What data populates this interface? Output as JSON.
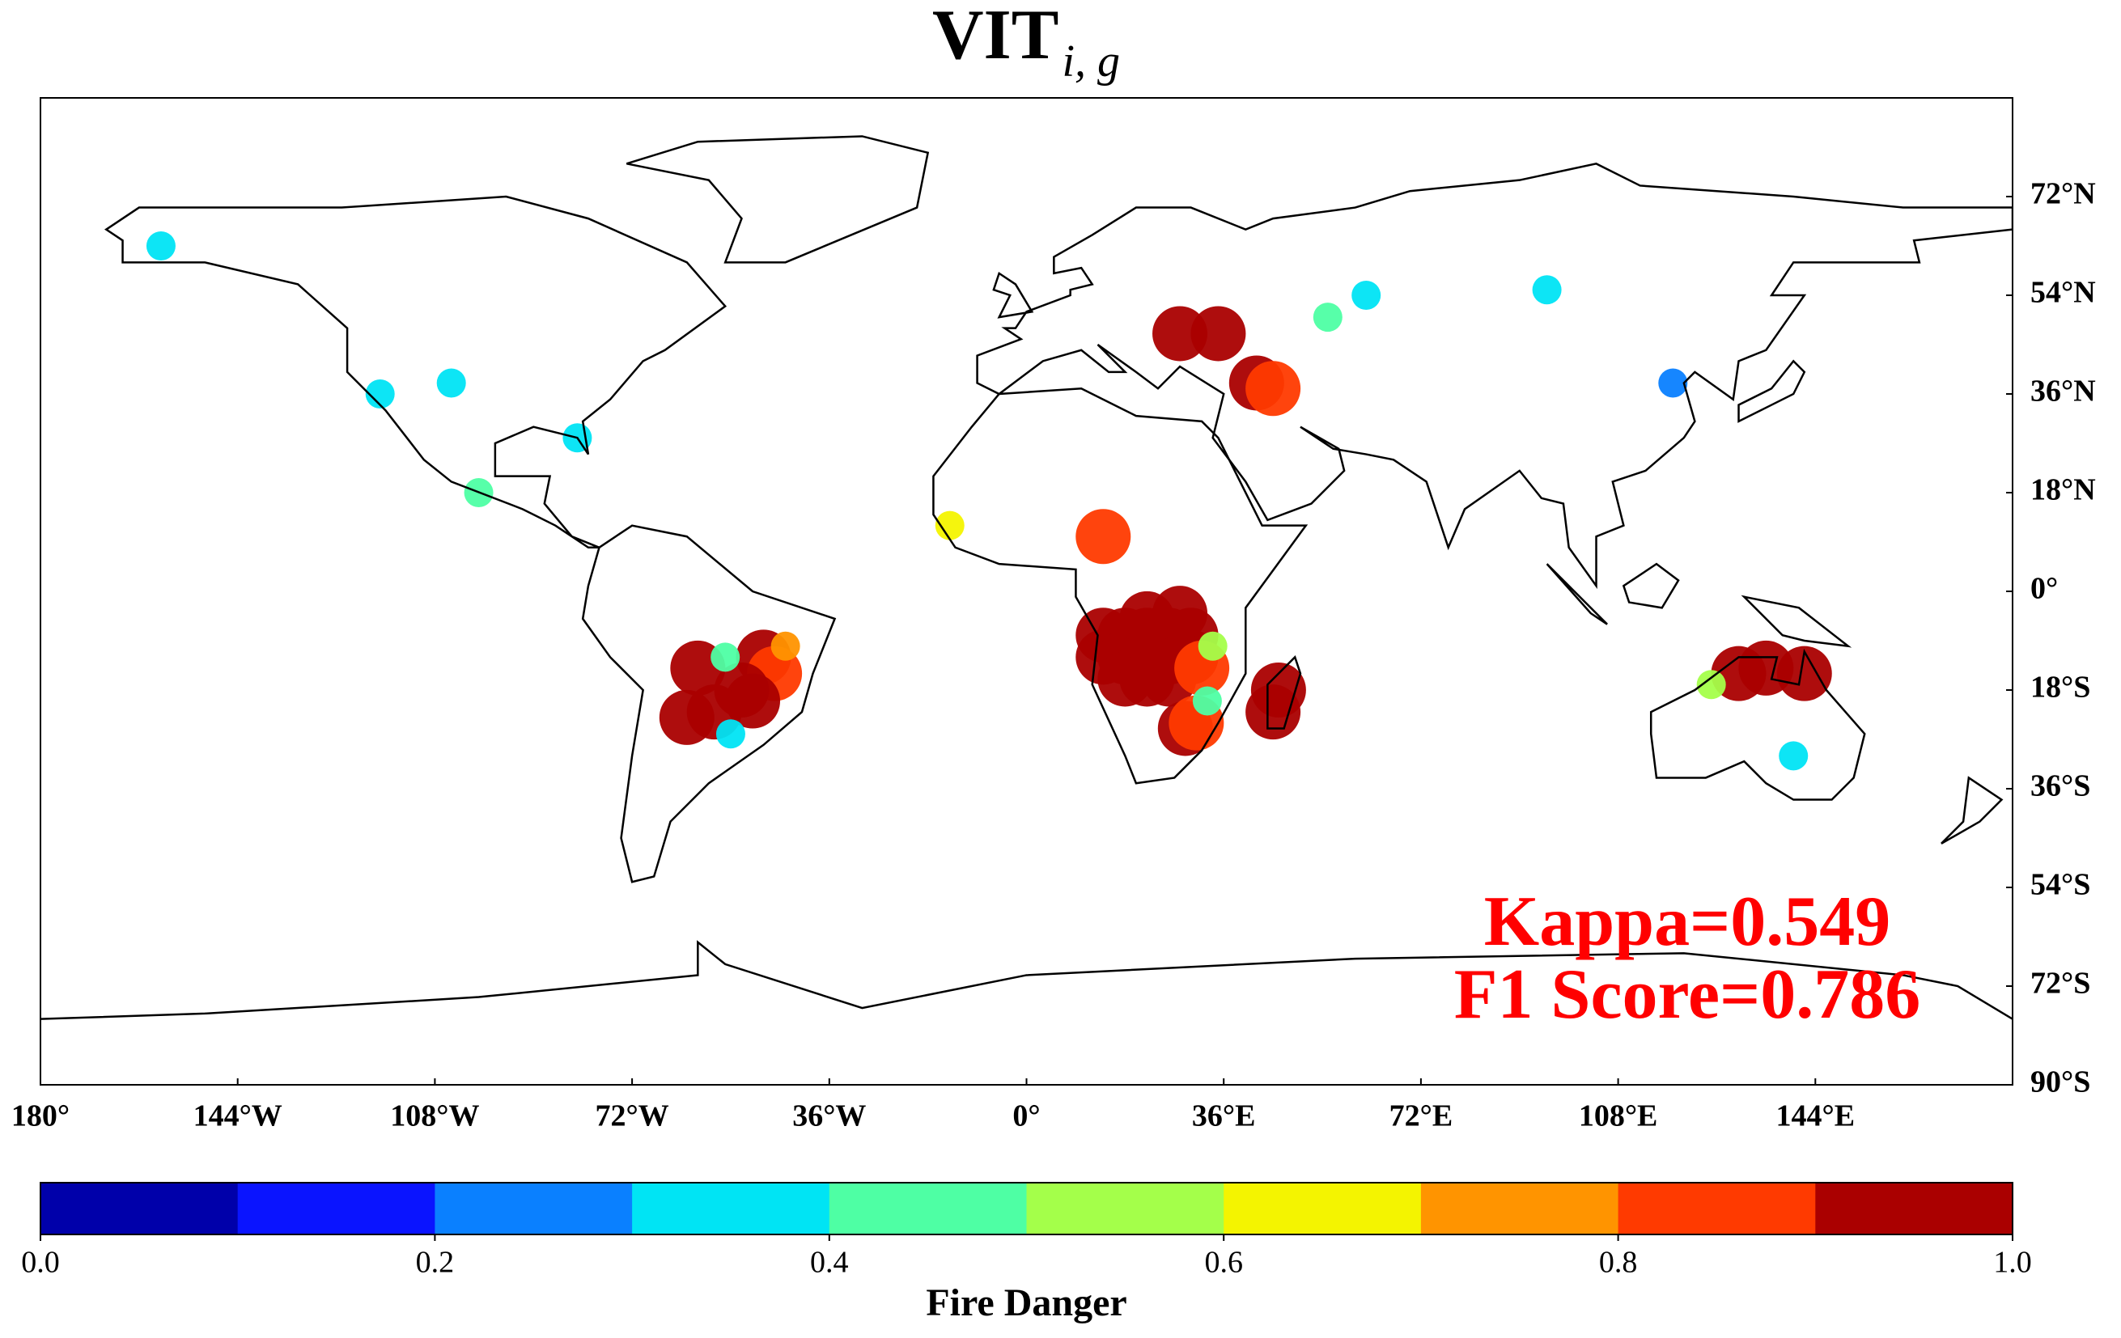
{
  "chart_data": {
    "type": "map",
    "title": "VIT",
    "title_subscript": "i, g",
    "xlim": [
      -180,
      180
    ],
    "ylim": [
      -90,
      90
    ],
    "xticks": [
      {
        "value": -180,
        "label": "180°"
      },
      {
        "value": -144,
        "label": "144°W"
      },
      {
        "value": -108,
        "label": "108°W"
      },
      {
        "value": -72,
        "label": "72°W"
      },
      {
        "value": -36,
        "label": "36°W"
      },
      {
        "value": 0,
        "label": "0°"
      },
      {
        "value": 36,
        "label": "36°E"
      },
      {
        "value": 72,
        "label": "72°E"
      },
      {
        "value": 108,
        "label": "108°E"
      },
      {
        "value": 144,
        "label": "144°E"
      }
    ],
    "yticks": [
      {
        "value": 72,
        "label": "72°N"
      },
      {
        "value": 54,
        "label": "54°N"
      },
      {
        "value": 36,
        "label": "36°N"
      },
      {
        "value": 18,
        "label": "18°N"
      },
      {
        "value": 0,
        "label": "0°"
      },
      {
        "value": -18,
        "label": "18°S"
      },
      {
        "value": -36,
        "label": "36°S"
      },
      {
        "value": -54,
        "label": "54°S"
      },
      {
        "value": -72,
        "label": "72°S"
      },
      {
        "value": -90,
        "label": "90°S"
      }
    ],
    "colorbar": {
      "label": "Fire Danger",
      "clim": [
        0,
        1
      ],
      "colors": [
        "#0000aa",
        "#0a14ff",
        "#0a80ff",
        "#00e4f4",
        "#4effa4",
        "#a4ff4a",
        "#f4f400",
        "#ff9400",
        "#ff3a00",
        "#aa0000"
      ],
      "ticks": [
        {
          "value": 0,
          "label": "0.0"
        },
        {
          "value": 0.2,
          "label": "0.2"
        },
        {
          "value": 0.4,
          "label": "0.4"
        },
        {
          "value": 0.6,
          "label": "0.6"
        },
        {
          "value": 0.8,
          "label": "0.8"
        },
        {
          "value": 1,
          "label": "1.0"
        }
      ]
    },
    "hotspots": {
      "lon": [
        14,
        18,
        22,
        26,
        30,
        14,
        18,
        22,
        26,
        30,
        18,
        22,
        26,
        22,
        28,
        32,
        46,
        45,
        29,
        31,
        34,
        33,
        -48,
        -46,
        -52,
        -50,
        -60,
        -57,
        -62,
        -44,
        -55,
        -54,
        130,
        135,
        142,
        125,
        140,
        28,
        35,
        42,
        45,
        55,
        62,
        95,
        118,
        -105,
        -118,
        -158,
        -82,
        -100,
        -14,
        14
      ],
      "lat": [
        -8,
        -8,
        -8,
        -8,
        -8,
        -12,
        -12,
        -12,
        -12,
        -12,
        -16,
        -16,
        -16,
        -5,
        -4,
        -14,
        -18,
        -22,
        -25,
        -24,
        -10,
        -20,
        -12,
        -15,
        -18,
        -20,
        -14,
        -22,
        -23,
        -10,
        -12,
        -26,
        -15,
        -14,
        -15,
        -17,
        -30,
        47,
        47,
        38,
        37,
        50,
        54,
        55,
        38,
        38,
        36,
        63,
        28,
        18,
        12,
        10
      ],
      "values": [
        0.95,
        0.95,
        0.95,
        0.95,
        0.95,
        0.95,
        0.95,
        0.95,
        0.95,
        0.95,
        0.95,
        0.95,
        0.95,
        0.95,
        0.95,
        0.85,
        0.95,
        0.95,
        0.95,
        0.85,
        0.5,
        0.4,
        0.95,
        0.85,
        0.95,
        0.9,
        0.95,
        0.95,
        0.95,
        0.75,
        0.45,
        0.35,
        0.95,
        0.9,
        0.9,
        0.5,
        0.3,
        0.95,
        0.9,
        0.95,
        0.85,
        0.4,
        0.35,
        0.3,
        0.25,
        0.35,
        0.3,
        0.3,
        0.35,
        0.4,
        0.6,
        0.85
      ]
    },
    "annotations": [
      "Kappa=0.549",
      "F1 Score=0.786"
    ]
  }
}
